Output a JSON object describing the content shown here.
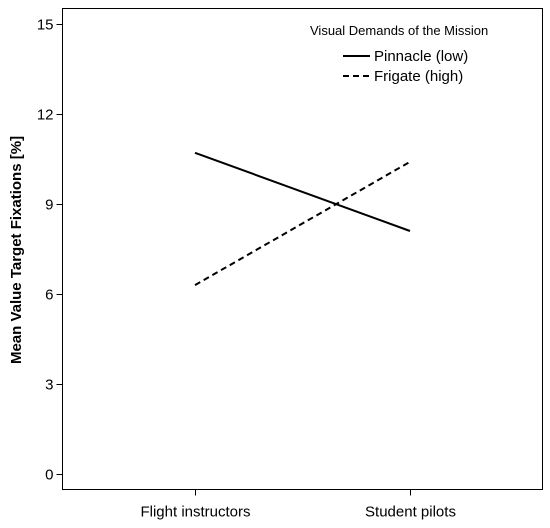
{
  "chart_data": {
    "type": "line",
    "title": "",
    "xlabel": "",
    "ylabel": "Mean Value Target Fixations [%]",
    "categories": [
      "Flight instructors",
      "Student pilots"
    ],
    "ylim": [
      -0.5,
      15.5
    ],
    "yticks": [
      0,
      3,
      6,
      9,
      12,
      15
    ],
    "grid": false,
    "legend": {
      "title": "Visual Demands of the Mission",
      "placement": "top-right"
    },
    "series": [
      {
        "name": "Pinnacle (low)",
        "style": "solid",
        "color": "#000000",
        "values": [
          10.7,
          8.1
        ]
      },
      {
        "name": "Frigate (high)",
        "style": "dashed",
        "color": "#000000",
        "values": [
          6.3,
          10.4
        ]
      }
    ]
  }
}
